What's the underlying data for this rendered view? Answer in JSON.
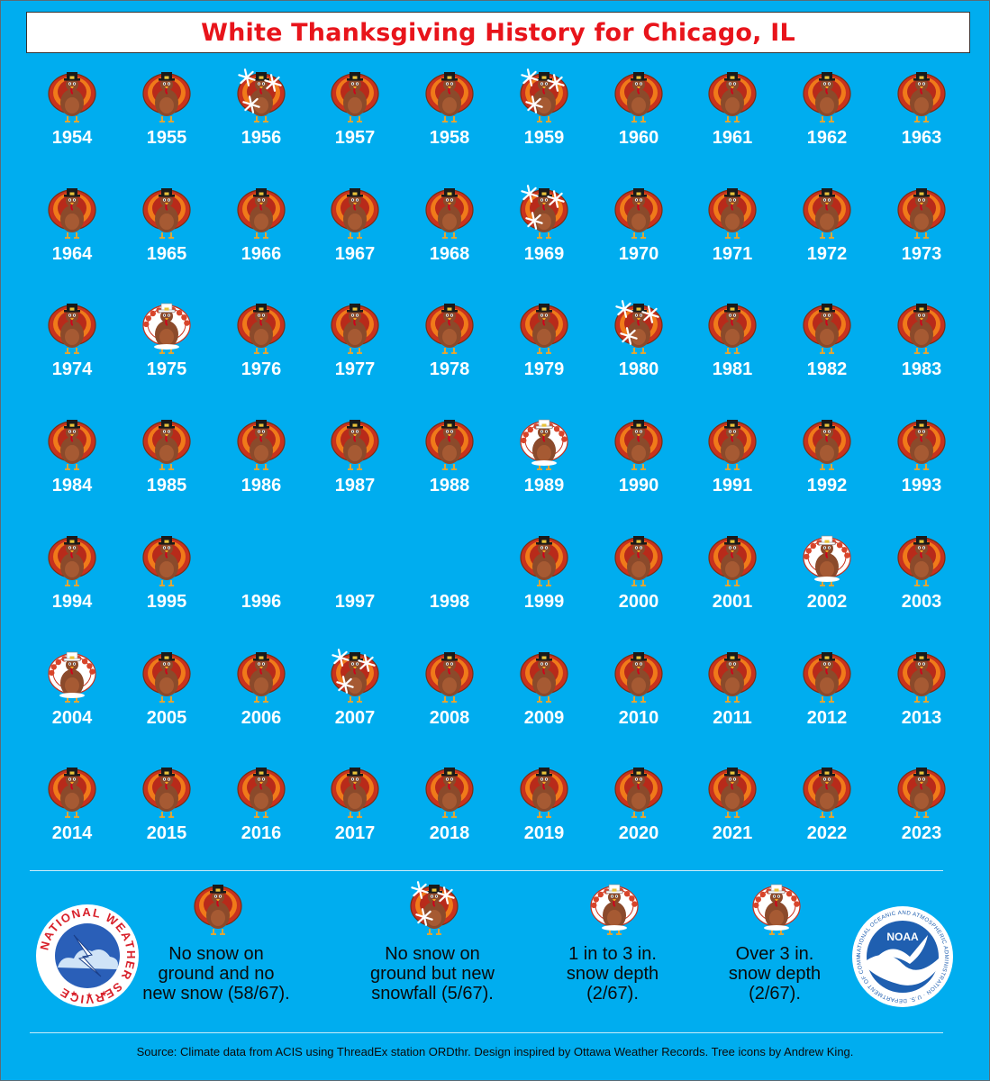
{
  "title": "White Thanksgiving History for Chicago, IL",
  "chart_data": {
    "type": "table",
    "categories": {
      "none": "No snow on ground and no new snow (58/67).",
      "new_snow": "No snow on ground but new snowfall (5/67).",
      "depth_1_3": "1 in to 3 in. snow depth (2/67).",
      "depth_over_3": "Over 3 in. snow depth (2/67)."
    },
    "years": [
      {
        "year": "1954",
        "status": "none"
      },
      {
        "year": "1955",
        "status": "none"
      },
      {
        "year": "1956",
        "status": "new_snow"
      },
      {
        "year": "1957",
        "status": "none"
      },
      {
        "year": "1958",
        "status": "none"
      },
      {
        "year": "1959",
        "status": "new_snow"
      },
      {
        "year": "1960",
        "status": "none"
      },
      {
        "year": "1961",
        "status": "none"
      },
      {
        "year": "1962",
        "status": "none"
      },
      {
        "year": "1963",
        "status": "none"
      },
      {
        "year": "1964",
        "status": "none"
      },
      {
        "year": "1965",
        "status": "none"
      },
      {
        "year": "1966",
        "status": "none"
      },
      {
        "year": "1967",
        "status": "none"
      },
      {
        "year": "1968",
        "status": "none"
      },
      {
        "year": "1969",
        "status": "new_snow"
      },
      {
        "year": "1970",
        "status": "none"
      },
      {
        "year": "1971",
        "status": "none"
      },
      {
        "year": "1972",
        "status": "none"
      },
      {
        "year": "1973",
        "status": "none"
      },
      {
        "year": "1974",
        "status": "none"
      },
      {
        "year": "1975",
        "status": "depth_over_3"
      },
      {
        "year": "1976",
        "status": "none"
      },
      {
        "year": "1977",
        "status": "none"
      },
      {
        "year": "1978",
        "status": "none"
      },
      {
        "year": "1979",
        "status": "none"
      },
      {
        "year": "1980",
        "status": "new_snow"
      },
      {
        "year": "1981",
        "status": "none"
      },
      {
        "year": "1982",
        "status": "none"
      },
      {
        "year": "1983",
        "status": "none"
      },
      {
        "year": "1984",
        "status": "none"
      },
      {
        "year": "1985",
        "status": "none"
      },
      {
        "year": "1986",
        "status": "none"
      },
      {
        "year": "1987",
        "status": "none"
      },
      {
        "year": "1988",
        "status": "none"
      },
      {
        "year": "1989",
        "status": "depth_1_3"
      },
      {
        "year": "1990",
        "status": "none"
      },
      {
        "year": "1991",
        "status": "none"
      },
      {
        "year": "1992",
        "status": "none"
      },
      {
        "year": "1993",
        "status": "none"
      },
      {
        "year": "1994",
        "status": "none"
      },
      {
        "year": "1995",
        "status": "none"
      },
      {
        "year": "1996",
        "status": "missing"
      },
      {
        "year": "1997",
        "status": "missing"
      },
      {
        "year": "1998",
        "status": "missing"
      },
      {
        "year": "1999",
        "status": "none"
      },
      {
        "year": "2000",
        "status": "none"
      },
      {
        "year": "2001",
        "status": "none"
      },
      {
        "year": "2002",
        "status": "depth_1_3"
      },
      {
        "year": "2003",
        "status": "none"
      },
      {
        "year": "2004",
        "status": "depth_over_3"
      },
      {
        "year": "2005",
        "status": "none"
      },
      {
        "year": "2006",
        "status": "none"
      },
      {
        "year": "2007",
        "status": "new_snow"
      },
      {
        "year": "2008",
        "status": "none"
      },
      {
        "year": "2009",
        "status": "none"
      },
      {
        "year": "2010",
        "status": "none"
      },
      {
        "year": "2011",
        "status": "none"
      },
      {
        "year": "2012",
        "status": "none"
      },
      {
        "year": "2013",
        "status": "none"
      },
      {
        "year": "2014",
        "status": "none"
      },
      {
        "year": "2015",
        "status": "none"
      },
      {
        "year": "2016",
        "status": "none"
      },
      {
        "year": "2017",
        "status": "none"
      },
      {
        "year": "2018",
        "status": "none"
      },
      {
        "year": "2019",
        "status": "none"
      },
      {
        "year": "2020",
        "status": "none"
      },
      {
        "year": "2021",
        "status": "none"
      },
      {
        "year": "2022",
        "status": "none"
      },
      {
        "year": "2023",
        "status": "none"
      }
    ]
  },
  "legend": [
    {
      "key": "none",
      "line1": "No snow on",
      "line2": "ground and no",
      "line3": "new snow (58/67)."
    },
    {
      "key": "new_snow",
      "line1": "No snow on",
      "line2": "ground but new",
      "line3": "snowfall (5/67)."
    },
    {
      "key": "depth_1_3",
      "line1": "1 in to 3 in.",
      "line2": "snow depth",
      "line3": "(2/67)."
    },
    {
      "key": "depth_over_3",
      "line1": "Over 3 in.",
      "line2": "snow depth",
      "line3": "(2/67)."
    }
  ],
  "logos": {
    "nws": "NATIONAL WEATHER SERVICE",
    "noaa": "NOAA",
    "noaa_ring": "NATIONAL OCEANIC AND ATMOSPHERIC ADMINISTRATION · U.S. DEPARTMENT OF COMMERCE"
  },
  "source": "Source: Climate data from ACIS using ThreadEx station ORDthr. Design inspired by Ottawa Weather Records. Tree icons by Andrew King.",
  "colors": {
    "background": "#00adef",
    "title": "#e8141b",
    "turkey_body": "#8b4a2b",
    "feather_red": "#c8321e",
    "feather_orange": "#f07a1a"
  }
}
